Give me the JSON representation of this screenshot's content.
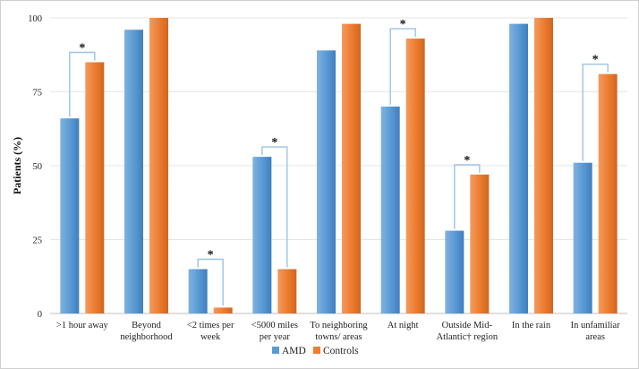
{
  "chart_data": {
    "type": "bar",
    "ylabel": "Patients (%)",
    "ylim": [
      0,
      100
    ],
    "yticks": [
      "0",
      "25",
      "50",
      "75",
      "100"
    ],
    "categories": [
      ">1 hour away|",
      "Beyond|neighborhood",
      "<2 times per|week",
      "<5000 miles|per year",
      "To neighboring|towns/ areas",
      "At night|",
      "Outside Mid-|Atlantic† region",
      "In the rain|",
      "In unfamiliar|areas"
    ],
    "series": [
      {
        "name": "AMD",
        "color": "#5b9bd5",
        "values": [
          66,
          96,
          15,
          53,
          89,
          70,
          28,
          98,
          51
        ]
      },
      {
        "name": "Controls",
        "color": "#ed7d31",
        "values": [
          85,
          100,
          2,
          15,
          98,
          93,
          47,
          100,
          81
        ]
      }
    ],
    "significance_marker": "*",
    "significant": [
      true,
      false,
      true,
      true,
      false,
      true,
      true,
      false,
      true
    ],
    "bracket_color": "#9dc3e6",
    "legend_position": "bottom"
  }
}
